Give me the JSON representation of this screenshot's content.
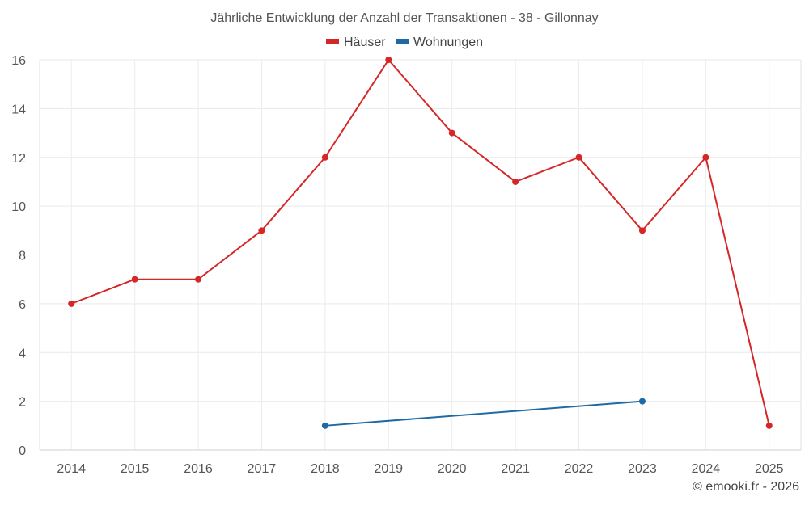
{
  "chart_data": {
    "type": "line",
    "title": "Jährliche Entwicklung der Anzahl der Transaktionen - 38 - Gillonnay",
    "categories": [
      "2014",
      "2015",
      "2016",
      "2017",
      "2018",
      "2019",
      "2020",
      "2021",
      "2022",
      "2023",
      "2024",
      "2025"
    ],
    "series": [
      {
        "name": "Häuser",
        "color": "#d62728",
        "values": [
          6,
          7,
          7,
          9,
          12,
          16,
          13,
          11,
          12,
          9,
          12,
          1
        ]
      },
      {
        "name": "Wohnungen",
        "color": "#1f6aa5",
        "values": [
          null,
          null,
          null,
          null,
          1,
          null,
          null,
          null,
          null,
          2,
          null,
          null
        ]
      }
    ],
    "ylim": [
      0,
      16
    ],
    "yticks": [
      0,
      2,
      4,
      6,
      8,
      10,
      12,
      14,
      16
    ],
    "grid": true,
    "legend_position": "top-center"
  },
  "footer": {
    "credit": "© emooki.fr - 2026"
  }
}
